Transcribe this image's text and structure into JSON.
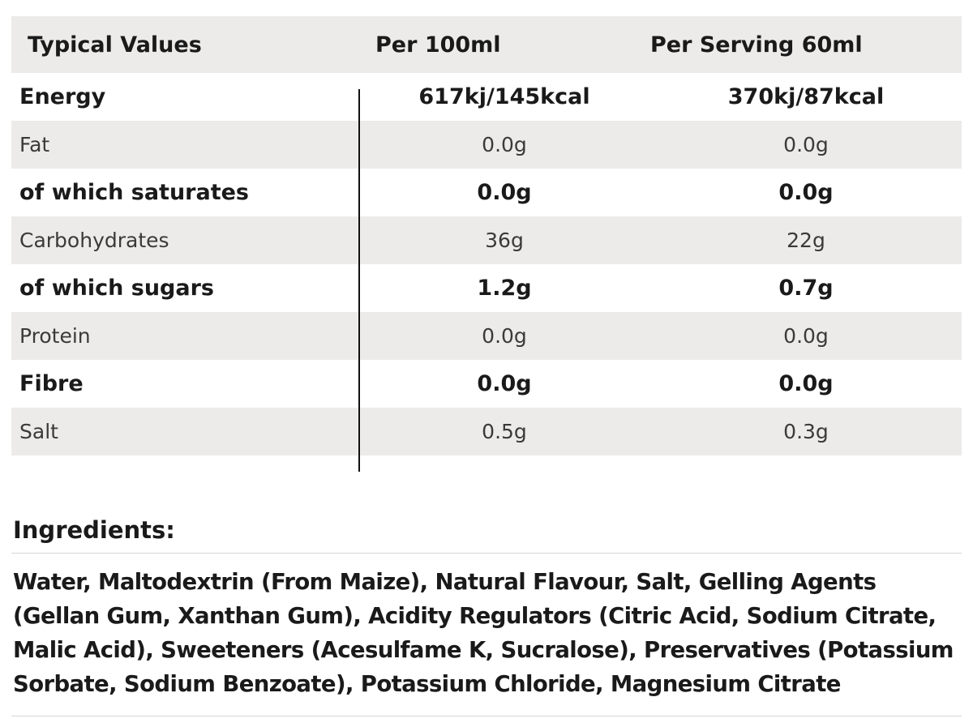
{
  "table": {
    "headers": {
      "name": "Typical Values",
      "per100": "Per 100ml",
      "perServing": "Per Serving 60ml"
    },
    "rows": [
      {
        "name": "Energy",
        "per100": "617kj/145kcal",
        "perServing": "370kj/87kcal"
      },
      {
        "name": "Fat",
        "per100": "0.0g",
        "perServing": "0.0g"
      },
      {
        "name": "of which saturates",
        "per100": "0.0g",
        "perServing": "0.0g"
      },
      {
        "name": "Carbohydrates",
        "per100": "36g",
        "perServing": "22g"
      },
      {
        "name": "of which sugars",
        "per100": "1.2g",
        "perServing": "0.7g"
      },
      {
        "name": "Protein",
        "per100": "0.0g",
        "perServing": "0.0g"
      },
      {
        "name": "Fibre",
        "per100": "0.0g",
        "perServing": "0.0g"
      },
      {
        "name": "Salt",
        "per100": "0.5g",
        "perServing": "0.3g"
      }
    ]
  },
  "ingredients": {
    "title": "Ingredients:",
    "lines": [
      "Water, Maltodextrin (From Maize), Natural Flavour, Salt, Gelling Agents",
      "(Gellan Gum, Xanthan Gum), Acidity Regulators (Citric Acid, Sodium Citrate,",
      "Malic Acid), Sweeteners (Acesulfame K, Sucralose), Preservatives (Potassium",
      "Sorbate, Sodium Benzoate), Potassium Chloride, Magnesium Citrate"
    ]
  }
}
